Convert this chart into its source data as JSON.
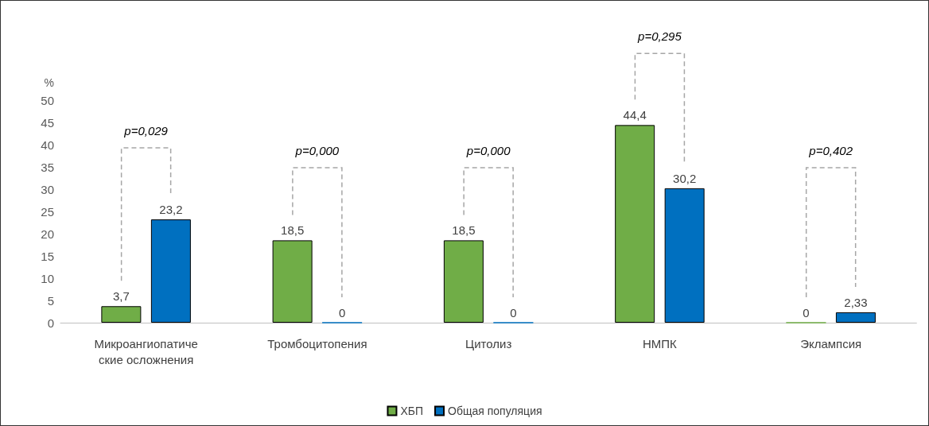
{
  "chart_data": {
    "type": "bar",
    "ylabel": "%",
    "categories": [
      "Микроангиопатические осложнения",
      "Тромбоцитопения",
      "Цитолиз",
      "НМПК",
      "Эклампсия"
    ],
    "series": [
      {
        "name": "ХБП",
        "color": "#70ad47",
        "values": [
          3.7,
          18.5,
          18.5,
          44.4,
          0
        ],
        "value_labels": [
          "3,7",
          "18,5",
          "18,5",
          "44,4",
          "0"
        ]
      },
      {
        "name": "Общая популяция",
        "color": "#0070c0",
        "values": [
          23.2,
          0,
          0,
          30.2,
          2.33
        ],
        "value_labels": [
          "23,2",
          "0",
          "0",
          "30,2",
          "2,33"
        ]
      }
    ],
    "ylim": [
      0,
      50
    ],
    "yticks": [
      0,
      5,
      10,
      15,
      20,
      25,
      30,
      35,
      40,
      45,
      50
    ],
    "grid": false,
    "legend": "bottom",
    "annotations": [
      "p=0,029",
      "p=0,000",
      "p=0,000",
      "p=0,295",
      "p=0,402"
    ]
  }
}
